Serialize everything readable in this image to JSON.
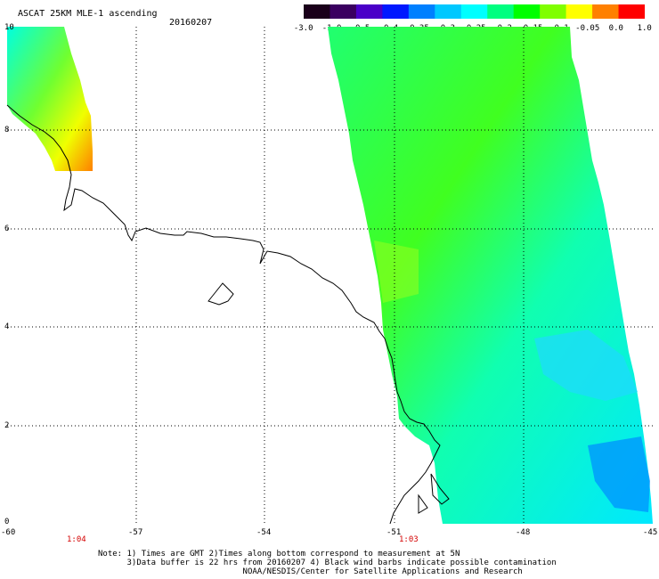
{
  "header": {
    "title": "ASCAT 25KM MLE-1 ascending",
    "date": "20160207"
  },
  "colorbar": {
    "labels": [
      "-3.0",
      "-1.0",
      "-0.5",
      "-0.4",
      "-0.35",
      "-0.3",
      "-0.25",
      "-0.2",
      "-0.15",
      "-0.1",
      "-0.05",
      "0.0",
      "1.0"
    ],
    "colors": [
      "#1a001a",
      "#3a0060",
      "#4a00c8",
      "#0018ff",
      "#0080ff",
      "#00c8ff",
      "#00ffff",
      "#00ff80",
      "#00ff00",
      "#80ff00",
      "#ffff00",
      "#ff8000",
      "#ff0000"
    ]
  },
  "map": {
    "lat_labels": [
      "10",
      "8",
      "6",
      "4",
      "2",
      "0"
    ],
    "lon_labels": [
      "-60",
      "-57",
      "-54",
      "-51",
      "-48",
      "-45"
    ],
    "times": [
      "1:04",
      "1:03"
    ]
  },
  "notes": {
    "line1": "Note: 1) Times are GMT 2)Times along bottom correspond to measurement at 5N",
    "line2": "      3)Data buffer is 22 hrs from 20160207 4) Black wind barbs indicate possible contamination",
    "line3": "                              NOAA/NESDIS/Center for Satellite Applications and Research"
  }
}
